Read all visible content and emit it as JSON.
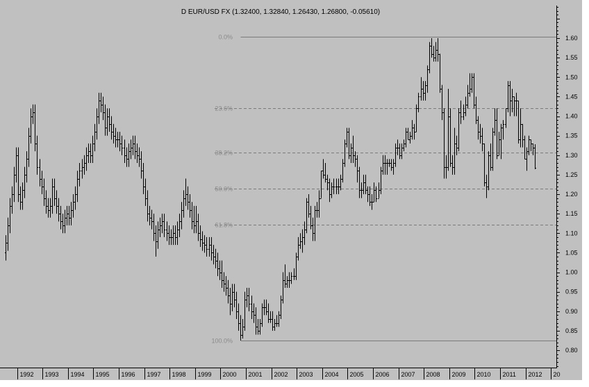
{
  "chart_data": {
    "type": "ohlc",
    "title": "D EUR/USD FX (1.32400, 1.32840, 1.26430, 1.26800, -0.05610)",
    "interval": "month",
    "start": "1991-07",
    "ylim": [
      0.75,
      1.685
    ],
    "xlim": [
      "1991-07",
      "2013-12"
    ],
    "grid": false,
    "yticks": [
      "1.60",
      "1.55",
      "1.50",
      "1.45",
      "1.40",
      "1.35",
      "1.30",
      "1.25",
      "1.20",
      "1.15",
      "1.10",
      "1.05",
      "1.00",
      "0.95",
      "0.90",
      "0.85",
      "0.80"
    ],
    "xticks": [
      "1992",
      "1993",
      "1994",
      "1995",
      "1996",
      "1997",
      "1998",
      "1999",
      "2000",
      "2001",
      "2002",
      "2003",
      "2004",
      "2005",
      "2006",
      "2007",
      "2008",
      "2009",
      "2010",
      "2011",
      "2012",
      "20"
    ],
    "colors": {
      "background": "#c0c0c0",
      "bars": "#000000",
      "fib_lines": "#7a7a7a",
      "fib_labels": "#8a8a8a"
    },
    "fibonacci": {
      "high": 1.604,
      "low": 0.8245,
      "start": "2000-10",
      "levels": [
        {
          "pct": 0.0,
          "label": "0.0%",
          "style": "solid"
        },
        {
          "pct": 0.236,
          "label": "23.6%",
          "style": "dashed"
        },
        {
          "pct": 0.382,
          "label": "38.2%",
          "style": "dashed"
        },
        {
          "pct": 0.5,
          "label": "50.0%",
          "style": "dashed"
        },
        {
          "pct": 0.618,
          "label": "61.8%",
          "style": "dashed"
        },
        {
          "pct": 1.0,
          "label": "100.0%",
          "style": "solid"
        }
      ]
    },
    "high": [
      1.095,
      1.14,
      1.19,
      1.22,
      1.27,
      1.32,
      1.32,
      1.22,
      1.23,
      1.27,
      1.31,
      1.37,
      1.42,
      1.43,
      1.43,
      1.35,
      1.29,
      1.26,
      1.24,
      1.21,
      1.19,
      1.19,
      1.24,
      1.24,
      1.21,
      1.19,
      1.17,
      1.15,
      1.16,
      1.17,
      1.17,
      1.18,
      1.2,
      1.22,
      1.26,
      1.28,
      1.29,
      1.3,
      1.32,
      1.33,
      1.33,
      1.35,
      1.38,
      1.42,
      1.46,
      1.46,
      1.45,
      1.43,
      1.42,
      1.42,
      1.4,
      1.38,
      1.37,
      1.36,
      1.36,
      1.35,
      1.34,
      1.32,
      1.33,
      1.34,
      1.35,
      1.35,
      1.33,
      1.32,
      1.31,
      1.28,
      1.24,
      1.21,
      1.17,
      1.16,
      1.15,
      1.12,
      1.13,
      1.14,
      1.15,
      1.15,
      1.13,
      1.12,
      1.11,
      1.12,
      1.12,
      1.13,
      1.15,
      1.18,
      1.21,
      1.24,
      1.22,
      1.2,
      1.18,
      1.17,
      1.17,
      1.15,
      1.12,
      1.105,
      1.095,
      1.09,
      1.09,
      1.09,
      1.07,
      1.06,
      1.05,
      1.03,
      1.03,
      1.0,
      0.99,
      0.98,
      0.96,
      0.97,
      0.97,
      0.95,
      0.92,
      0.89,
      0.88,
      0.95,
      0.96,
      0.96,
      0.94,
      0.92,
      0.91,
      0.88,
      0.88,
      0.92,
      0.93,
      0.93,
      0.92,
      0.9,
      0.9,
      0.88,
      0.89,
      0.9,
      0.94,
      1.0,
      1.02,
      0.99,
      1.0,
      1.0,
      1.01,
      1.05,
      1.09,
      1.1,
      1.11,
      1.13,
      1.19,
      1.2,
      1.17,
      1.14,
      1.17,
      1.18,
      1.21,
      1.26,
      1.29,
      1.28,
      1.25,
      1.24,
      1.23,
      1.24,
      1.24,
      1.24,
      1.25,
      1.29,
      1.34,
      1.37,
      1.37,
      1.33,
      1.35,
      1.31,
      1.3,
      1.27,
      1.23,
      1.25,
      1.25,
      1.22,
      1.22,
      1.2,
      1.23,
      1.22,
      1.23,
      1.27,
      1.3,
      1.3,
      1.29,
      1.29,
      1.29,
      1.29,
      1.33,
      1.34,
      1.33,
      1.33,
      1.34,
      1.37,
      1.37,
      1.36,
      1.39,
      1.38,
      1.43,
      1.46,
      1.5,
      1.49,
      1.49,
      1.53,
      1.59,
      1.6,
      1.58,
      1.59,
      1.6,
      1.56,
      1.48,
      1.42,
      1.3,
      1.47,
      1.42,
      1.3,
      1.37,
      1.35,
      1.42,
      1.44,
      1.43,
      1.45,
      1.48,
      1.51,
      1.51,
      1.51,
      1.45,
      1.4,
      1.38,
      1.37,
      1.33,
      1.25,
      1.31,
      1.33,
      1.37,
      1.42,
      1.42,
      1.36,
      1.38,
      1.39,
      1.42,
      1.49,
      1.49,
      1.47,
      1.45,
      1.46,
      1.44,
      1.42,
      1.38,
      1.35,
      1.32,
      1.35,
      1.34,
      1.33,
      1.328
    ],
    "low": [
      1.03,
      1.055,
      1.1,
      1.15,
      1.18,
      1.23,
      1.18,
      1.16,
      1.16,
      1.19,
      1.23,
      1.27,
      1.33,
      1.38,
      1.31,
      1.25,
      1.22,
      1.2,
      1.17,
      1.15,
      1.14,
      1.14,
      1.15,
      1.17,
      1.15,
      1.13,
      1.11,
      1.1,
      1.1,
      1.12,
      1.12,
      1.12,
      1.14,
      1.16,
      1.18,
      1.22,
      1.24,
      1.25,
      1.26,
      1.28,
      1.28,
      1.28,
      1.31,
      1.34,
      1.38,
      1.41,
      1.39,
      1.35,
      1.35,
      1.36,
      1.34,
      1.33,
      1.32,
      1.32,
      1.31,
      1.3,
      1.28,
      1.27,
      1.27,
      1.29,
      1.3,
      1.29,
      1.28,
      1.27,
      1.24,
      1.2,
      1.17,
      1.13,
      1.12,
      1.11,
      1.08,
      1.04,
      1.06,
      1.09,
      1.1,
      1.09,
      1.08,
      1.07,
      1.07,
      1.07,
      1.07,
      1.07,
      1.09,
      1.11,
      1.14,
      1.17,
      1.16,
      1.14,
      1.11,
      1.1,
      1.1,
      1.08,
      1.065,
      1.055,
      1.05,
      1.04,
      1.04,
      1.03,
      1.02,
      1.01,
      0.99,
      0.98,
      0.96,
      0.95,
      0.94,
      0.92,
      0.89,
      0.9,
      0.91,
      0.88,
      0.85,
      0.825,
      0.83,
      0.85,
      0.91,
      0.9,
      0.88,
      0.87,
      0.84,
      0.84,
      0.84,
      0.86,
      0.89,
      0.89,
      0.87,
      0.87,
      0.85,
      0.85,
      0.86,
      0.86,
      0.88,
      0.92,
      0.96,
      0.96,
      0.96,
      0.97,
      0.98,
      0.98,
      1.03,
      1.06,
      1.05,
      1.07,
      1.1,
      1.14,
      1.11,
      1.08,
      1.08,
      1.14,
      1.14,
      1.19,
      1.24,
      1.23,
      1.21,
      1.18,
      1.19,
      1.2,
      1.2,
      1.2,
      1.21,
      1.23,
      1.27,
      1.32,
      1.29,
      1.28,
      1.28,
      1.27,
      1.23,
      1.19,
      1.19,
      1.2,
      1.2,
      1.18,
      1.17,
      1.16,
      1.18,
      1.18,
      1.19,
      1.2,
      1.25,
      1.25,
      1.25,
      1.27,
      1.26,
      1.25,
      1.27,
      1.3,
      1.29,
      1.29,
      1.31,
      1.32,
      1.34,
      1.33,
      1.34,
      1.34,
      1.36,
      1.41,
      1.44,
      1.44,
      1.44,
      1.46,
      1.51,
      1.55,
      1.54,
      1.54,
      1.54,
      1.46,
      1.39,
      1.24,
      1.24,
      1.26,
      1.27,
      1.25,
      1.25,
      1.3,
      1.31,
      1.38,
      1.39,
      1.4,
      1.42,
      1.45,
      1.46,
      1.42,
      1.38,
      1.34,
      1.33,
      1.31,
      1.22,
      1.19,
      1.21,
      1.26,
      1.26,
      1.35,
      1.29,
      1.3,
      1.29,
      1.34,
      1.37,
      1.41,
      1.4,
      1.41,
      1.4,
      1.4,
      1.33,
      1.32,
      1.32,
      1.29,
      1.26,
      1.3,
      1.31,
      1.3,
      1.264
    ],
    "close": [
      1.075,
      1.12,
      1.17,
      1.2,
      1.25,
      1.3,
      1.2,
      1.18,
      1.21,
      1.25,
      1.29,
      1.35,
      1.4,
      1.41,
      1.33,
      1.27,
      1.24,
      1.22,
      1.19,
      1.17,
      1.16,
      1.17,
      1.22,
      1.19,
      1.17,
      1.15,
      1.13,
      1.12,
      1.14,
      1.15,
      1.14,
      1.16,
      1.18,
      1.2,
      1.24,
      1.26,
      1.27,
      1.28,
      1.3,
      1.31,
      1.3,
      1.33,
      1.36,
      1.4,
      1.44,
      1.43,
      1.41,
      1.37,
      1.4,
      1.38,
      1.36,
      1.35,
      1.34,
      1.34,
      1.33,
      1.32,
      1.3,
      1.29,
      1.31,
      1.32,
      1.33,
      1.31,
      1.3,
      1.29,
      1.26,
      1.22,
      1.19,
      1.15,
      1.14,
      1.13,
      1.1,
      1.08,
      1.11,
      1.12,
      1.13,
      1.11,
      1.1,
      1.09,
      1.09,
      1.1,
      1.09,
      1.11,
      1.13,
      1.16,
      1.19,
      1.2,
      1.18,
      1.16,
      1.13,
      1.12,
      1.13,
      1.1,
      1.085,
      1.075,
      1.07,
      1.06,
      1.07,
      1.05,
      1.04,
      1.03,
      1.01,
      1.0,
      0.98,
      0.97,
      0.96,
      0.94,
      0.92,
      0.95,
      0.93,
      0.9,
      0.87,
      0.84,
      0.86,
      0.93,
      0.94,
      0.92,
      0.9,
      0.89,
      0.86,
      0.85,
      0.87,
      0.91,
      0.91,
      0.9,
      0.88,
      0.88,
      0.86,
      0.87,
      0.87,
      0.89,
      0.93,
      0.98,
      0.97,
      0.98,
      0.98,
      0.99,
      0.99,
      1.04,
      1.07,
      1.08,
      1.09,
      1.11,
      1.18,
      1.15,
      1.12,
      1.1,
      1.16,
      1.16,
      1.19,
      1.26,
      1.25,
      1.24,
      1.23,
      1.2,
      1.22,
      1.22,
      1.22,
      1.22,
      1.24,
      1.28,
      1.33,
      1.36,
      1.3,
      1.32,
      1.3,
      1.29,
      1.26,
      1.21,
      1.21,
      1.23,
      1.21,
      1.2,
      1.18,
      1.18,
      1.21,
      1.19,
      1.21,
      1.26,
      1.28,
      1.28,
      1.28,
      1.28,
      1.27,
      1.28,
      1.32,
      1.32,
      1.3,
      1.32,
      1.33,
      1.36,
      1.34,
      1.35,
      1.37,
      1.36,
      1.42,
      1.45,
      1.47,
      1.46,
      1.48,
      1.52,
      1.58,
      1.56,
      1.55,
      1.57,
      1.56,
      1.47,
      1.41,
      1.27,
      1.27,
      1.4,
      1.28,
      1.27,
      1.33,
      1.32,
      1.41,
      1.4,
      1.41,
      1.43,
      1.46,
      1.47,
      1.5,
      1.43,
      1.39,
      1.36,
      1.35,
      1.33,
      1.23,
      1.22,
      1.3,
      1.27,
      1.36,
      1.39,
      1.3,
      1.34,
      1.37,
      1.38,
      1.42,
      1.48,
      1.44,
      1.45,
      1.44,
      1.44,
      1.34,
      1.38,
      1.34,
      1.29,
      1.31,
      1.34,
      1.33,
      1.32,
      1.268
    ],
    "open_first": 1.05
  }
}
